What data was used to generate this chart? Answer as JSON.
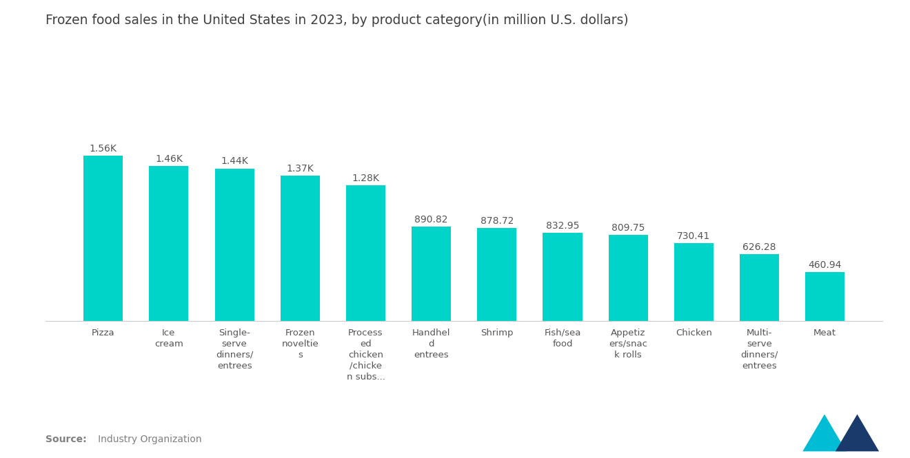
{
  "title": "Frozen food sales in the United States in 2023, by product category(in million U.S. dollars)",
  "categories": [
    "Pizza",
    "Ice\ncream",
    "Single-\nserve\ndinners/\nentrees",
    "Frozen\nnoveltie\ns",
    "Process\ned\nchicken\n/chicke\nn subs...",
    "Handhel\nd\nentrees",
    "Shrimp",
    "Fish/sea\nfood",
    "Appetiz\ners/snac\nk rolls",
    "Chicken",
    "Multi-\nserve\ndinners/\nentrees",
    "Meat"
  ],
  "values": [
    1560,
    1460,
    1440,
    1370,
    1280,
    890.82,
    878.72,
    832.95,
    809.75,
    730.41,
    626.28,
    460.94
  ],
  "value_labels": [
    "1.56K",
    "1.46K",
    "1.44K",
    "1.37K",
    "1.28K",
    "890.82",
    "878.72",
    "832.95",
    "809.75",
    "730.41",
    "626.28",
    "460.94"
  ],
  "bar_color": "#00d4c8",
  "background_color": "#ffffff",
  "title_color": "#404040",
  "label_color": "#555555",
  "source_label_bold": "Source:",
  "source_label_rest": "   Industry Organization",
  "ylim": [
    0,
    1950
  ],
  "title_fontsize": 13.5,
  "value_label_fontsize": 10,
  "tick_fontsize": 9.5,
  "source_fontsize": 10,
  "logo_color_left": "#00bcd4",
  "logo_color_right": "#1a3a6b"
}
